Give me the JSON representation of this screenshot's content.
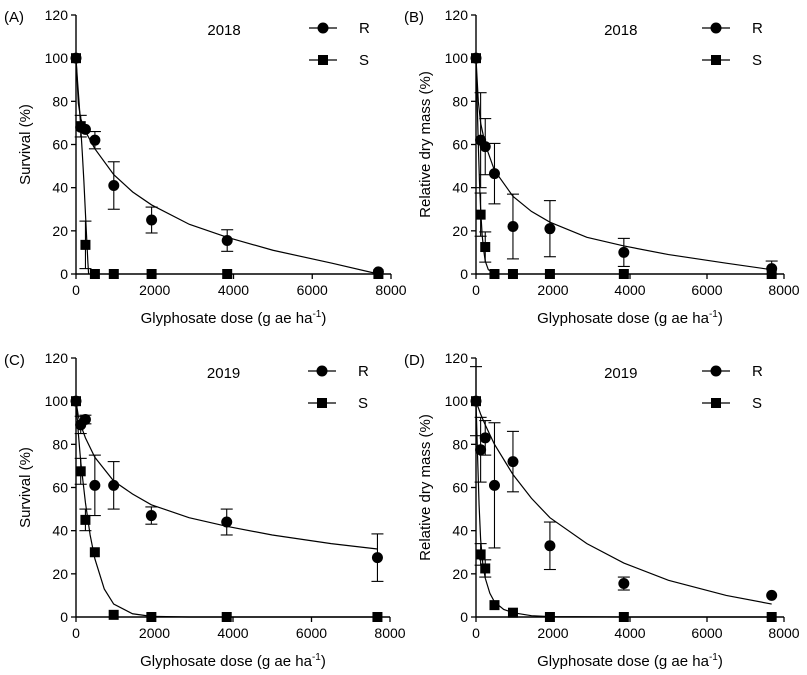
{
  "chart_data": [
    {
      "panel_label": "(A)",
      "type": "scatter",
      "year_label": "2018",
      "xlabel_main": "Glyphosate dose (g ae ha",
      "xlabel_sup": "-1",
      "xlabel_end": ")",
      "ylabel": "Survival (%)",
      "xlim": [
        0,
        8000
      ],
      "ylim": [
        0,
        120
      ],
      "x_ticks": [
        "0",
        "2000",
        "4000",
        "6000",
        "8000"
      ],
      "y_ticks": [
        "0",
        "20",
        "40",
        "60",
        "80",
        "100",
        "120"
      ],
      "legend_position": "top-right",
      "series": [
        {
          "name": "R",
          "marker": "circle",
          "points": [
            {
              "x": 0,
              "y": 100
            },
            {
              "x": 120,
              "y": 68
            },
            {
              "x": 240,
              "y": 67
            },
            {
              "x": 480,
              "y": 62,
              "err": 4
            },
            {
              "x": 960,
              "y": 41,
              "err": 11
            },
            {
              "x": 1920,
              "y": 25,
              "err": 6
            },
            {
              "x": 3840,
              "y": 15.5,
              "err": 5
            },
            {
              "x": 7680,
              "y": 1
            }
          ],
          "fit": [
            [
              0,
              100
            ],
            [
              60,
              79
            ],
            [
              120,
              72
            ],
            [
              240,
              66
            ],
            [
              480,
              58
            ],
            [
              960,
              46
            ],
            [
              1440,
              38
            ],
            [
              1920,
              32
            ],
            [
              2880,
              23
            ],
            [
              3840,
              17
            ],
            [
              5000,
              11
            ],
            [
              6500,
              5
            ],
            [
              7680,
              0
            ]
          ]
        },
        {
          "name": "S",
          "marker": "square",
          "points": [
            {
              "x": 0,
              "y": 100
            },
            {
              "x": 120,
              "y": 68.5,
              "err": 5
            },
            {
              "x": 240,
              "y": 13.5,
              "err": 11
            },
            {
              "x": 480,
              "y": 0
            },
            {
              "x": 960,
              "y": 0
            },
            {
              "x": 1920,
              "y": 0
            },
            {
              "x": 3840,
              "y": 0
            },
            {
              "x": 7680,
              "y": 0
            }
          ],
          "fit": [
            [
              0,
              100
            ],
            [
              40,
              89
            ],
            [
              80,
              79
            ],
            [
              120,
              68
            ],
            [
              160,
              56
            ],
            [
              200,
              43
            ],
            [
              240,
              28
            ],
            [
              270,
              17
            ],
            [
              300,
              6
            ],
            [
              320,
              0
            ]
          ]
        }
      ]
    },
    {
      "panel_label": "(B)",
      "type": "scatter",
      "year_label": "2018",
      "xlabel_main": "Glyphosate dose (g ae ha",
      "xlabel_sup": "-1",
      "xlabel_end": ")",
      "ylabel": "Relative dry mass (%)",
      "xlim": [
        0,
        8000
      ],
      "ylim": [
        0,
        120
      ],
      "x_ticks": [
        "0",
        "2000",
        "4000",
        "6000",
        "8000"
      ],
      "y_ticks": [
        "0",
        "20",
        "40",
        "60",
        "80",
        "100",
        "120"
      ],
      "legend_position": "top-right",
      "series": [
        {
          "name": "R",
          "marker": "circle",
          "points": [
            {
              "x": 0,
              "y": 100
            },
            {
              "x": 120,
              "y": 62,
              "err": 22
            },
            {
              "x": 240,
              "y": 59,
              "err": 13
            },
            {
              "x": 480,
              "y": 46.5,
              "err": 14
            },
            {
              "x": 960,
              "y": 22,
              "err": 15
            },
            {
              "x": 1920,
              "y": 21,
              "err": 13
            },
            {
              "x": 3840,
              "y": 10,
              "err": 6.5
            },
            {
              "x": 7680,
              "y": 2.5,
              "err": 3.5
            }
          ],
          "fit": [
            [
              0,
              100
            ],
            [
              60,
              80
            ],
            [
              120,
              70
            ],
            [
              240,
              60
            ],
            [
              480,
              48
            ],
            [
              960,
              36
            ],
            [
              1440,
              29
            ],
            [
              1920,
              24
            ],
            [
              2880,
              17
            ],
            [
              3840,
              13
            ],
            [
              5000,
              9
            ],
            [
              6500,
              5
            ],
            [
              7680,
              2
            ]
          ]
        },
        {
          "name": "S",
          "marker": "square",
          "points": [
            {
              "x": 0,
              "y": 100
            },
            {
              "x": 120,
              "y": 27.5,
              "err": 10
            },
            {
              "x": 240,
              "y": 12.5,
              "err": 7
            },
            {
              "x": 480,
              "y": 0
            },
            {
              "x": 960,
              "y": 0
            },
            {
              "x": 1920,
              "y": 0
            },
            {
              "x": 3840,
              "y": 0
            },
            {
              "x": 7680,
              "y": 0
            }
          ],
          "fit": [
            [
              0,
              100
            ],
            [
              30,
              80
            ],
            [
              60,
              60
            ],
            [
              90,
              43
            ],
            [
              120,
              30
            ],
            [
              160,
              18
            ],
            [
              200,
              11
            ],
            [
              240,
              6
            ],
            [
              320,
              2
            ],
            [
              480,
              0
            ]
          ]
        }
      ]
    },
    {
      "panel_label": "(C)",
      "type": "scatter",
      "year_label": "2019",
      "xlabel_main": "Glyphosate dose (g ae ha",
      "xlabel_sup": "-1",
      "xlabel_end": ")",
      "ylabel": "Survival (%)",
      "xlim": [
        0,
        8000
      ],
      "ylim": [
        0,
        120
      ],
      "x_ticks": [
        "0",
        "2000",
        "4000",
        "6000",
        "8000"
      ],
      "y_ticks": [
        "0",
        "20",
        "40",
        "60",
        "80",
        "100",
        "120"
      ],
      "legend_position": "top-right",
      "series": [
        {
          "name": "R",
          "marker": "circle",
          "points": [
            {
              "x": 0,
              "y": 100
            },
            {
              "x": 120,
              "y": 89,
              "err": 4
            },
            {
              "x": 240,
              "y": 91.5,
              "err": 2
            },
            {
              "x": 480,
              "y": 61,
              "err": 14
            },
            {
              "x": 960,
              "y": 61,
              "err": 11
            },
            {
              "x": 1920,
              "y": 47,
              "err": 4
            },
            {
              "x": 3840,
              "y": 44,
              "err": 6
            },
            {
              "x": 7680,
              "y": 27.5,
              "err": 11
            }
          ],
          "fit": [
            [
              0,
              100
            ],
            [
              60,
              93
            ],
            [
              120,
              89
            ],
            [
              240,
              83
            ],
            [
              480,
              74
            ],
            [
              960,
              63
            ],
            [
              1440,
              57
            ],
            [
              1920,
              52
            ],
            [
              2880,
              46
            ],
            [
              3840,
              42
            ],
            [
              5000,
              38
            ],
            [
              6500,
              34
            ],
            [
              7680,
              31.5
            ]
          ]
        },
        {
          "name": "S",
          "marker": "square",
          "points": [
            {
              "x": 0,
              "y": 100
            },
            {
              "x": 120,
              "y": 67.5,
              "err": 6
            },
            {
              "x": 240,
              "y": 45,
              "err": 5
            },
            {
              "x": 480,
              "y": 30
            },
            {
              "x": 960,
              "y": 1
            },
            {
              "x": 1920,
              "y": 0
            },
            {
              "x": 3840,
              "y": 0
            },
            {
              "x": 7680,
              "y": 0
            }
          ],
          "fit": [
            [
              0,
              100
            ],
            [
              60,
              85
            ],
            [
              120,
              72
            ],
            [
              240,
              53
            ],
            [
              360,
              38
            ],
            [
              480,
              27
            ],
            [
              720,
              13
            ],
            [
              960,
              6
            ],
            [
              1440,
              1.5
            ],
            [
              1920,
              0.3
            ],
            [
              2880,
              0
            ],
            [
              3840,
              0
            ],
            [
              7680,
              0
            ]
          ]
        }
      ]
    },
    {
      "panel_label": "(D)",
      "type": "scatter",
      "year_label": "2019",
      "xlabel_main": "Glyphosate dose (g ae ha",
      "xlabel_sup": "-1",
      "xlabel_end": ")",
      "ylabel": "Relative dry mass (%)",
      "xlim": [
        0,
        8000
      ],
      "ylim": [
        0,
        120
      ],
      "x_ticks": [
        "0",
        "2000",
        "4000",
        "6000",
        "8000"
      ],
      "y_ticks": [
        "0",
        "20",
        "40",
        "60",
        "80",
        "100",
        "120"
      ],
      "legend_position": "top-right",
      "series": [
        {
          "name": "R",
          "marker": "circle",
          "points": [
            {
              "x": 0,
              "y": 100,
              "err": 16
            },
            {
              "x": 120,
              "y": 77.5,
              "err": 15
            },
            {
              "x": 240,
              "y": 83,
              "err": 8
            },
            {
              "x": 480,
              "y": 61,
              "err": 29
            },
            {
              "x": 960,
              "y": 72,
              "err": 14
            },
            {
              "x": 1920,
              "y": 33,
              "err": 11
            },
            {
              "x": 3840,
              "y": 15.5,
              "err": 3
            },
            {
              "x": 7680,
              "y": 10
            }
          ],
          "fit": [
            [
              0,
              100
            ],
            [
              120,
              94
            ],
            [
              240,
              89
            ],
            [
              480,
              80
            ],
            [
              960,
              66
            ],
            [
              1440,
              55
            ],
            [
              1920,
              46
            ],
            [
              2880,
              34
            ],
            [
              3840,
              25
            ],
            [
              5000,
              17
            ],
            [
              6500,
              10
            ],
            [
              7680,
              6
            ]
          ]
        },
        {
          "name": "S",
          "marker": "square",
          "points": [
            {
              "x": 0,
              "y": 100
            },
            {
              "x": 120,
              "y": 29,
              "err": 5
            },
            {
              "x": 240,
              "y": 22.5,
              "err": 4
            },
            {
              "x": 480,
              "y": 5.5
            },
            {
              "x": 960,
              "y": 2
            },
            {
              "x": 1920,
              "y": 0
            },
            {
              "x": 3840,
              "y": 0
            },
            {
              "x": 7680,
              "y": 0
            }
          ],
          "fit": [
            [
              0,
              100
            ],
            [
              40,
              75
            ],
            [
              80,
              52
            ],
            [
              120,
              36
            ],
            [
              180,
              24
            ],
            [
              240,
              18
            ],
            [
              360,
              11
            ],
            [
              480,
              7
            ],
            [
              720,
              3.5
            ],
            [
              960,
              2
            ],
            [
              1440,
              0.6
            ],
            [
              1920,
              0.2
            ],
            [
              3840,
              0
            ],
            [
              7680,
              0
            ]
          ]
        }
      ]
    }
  ]
}
